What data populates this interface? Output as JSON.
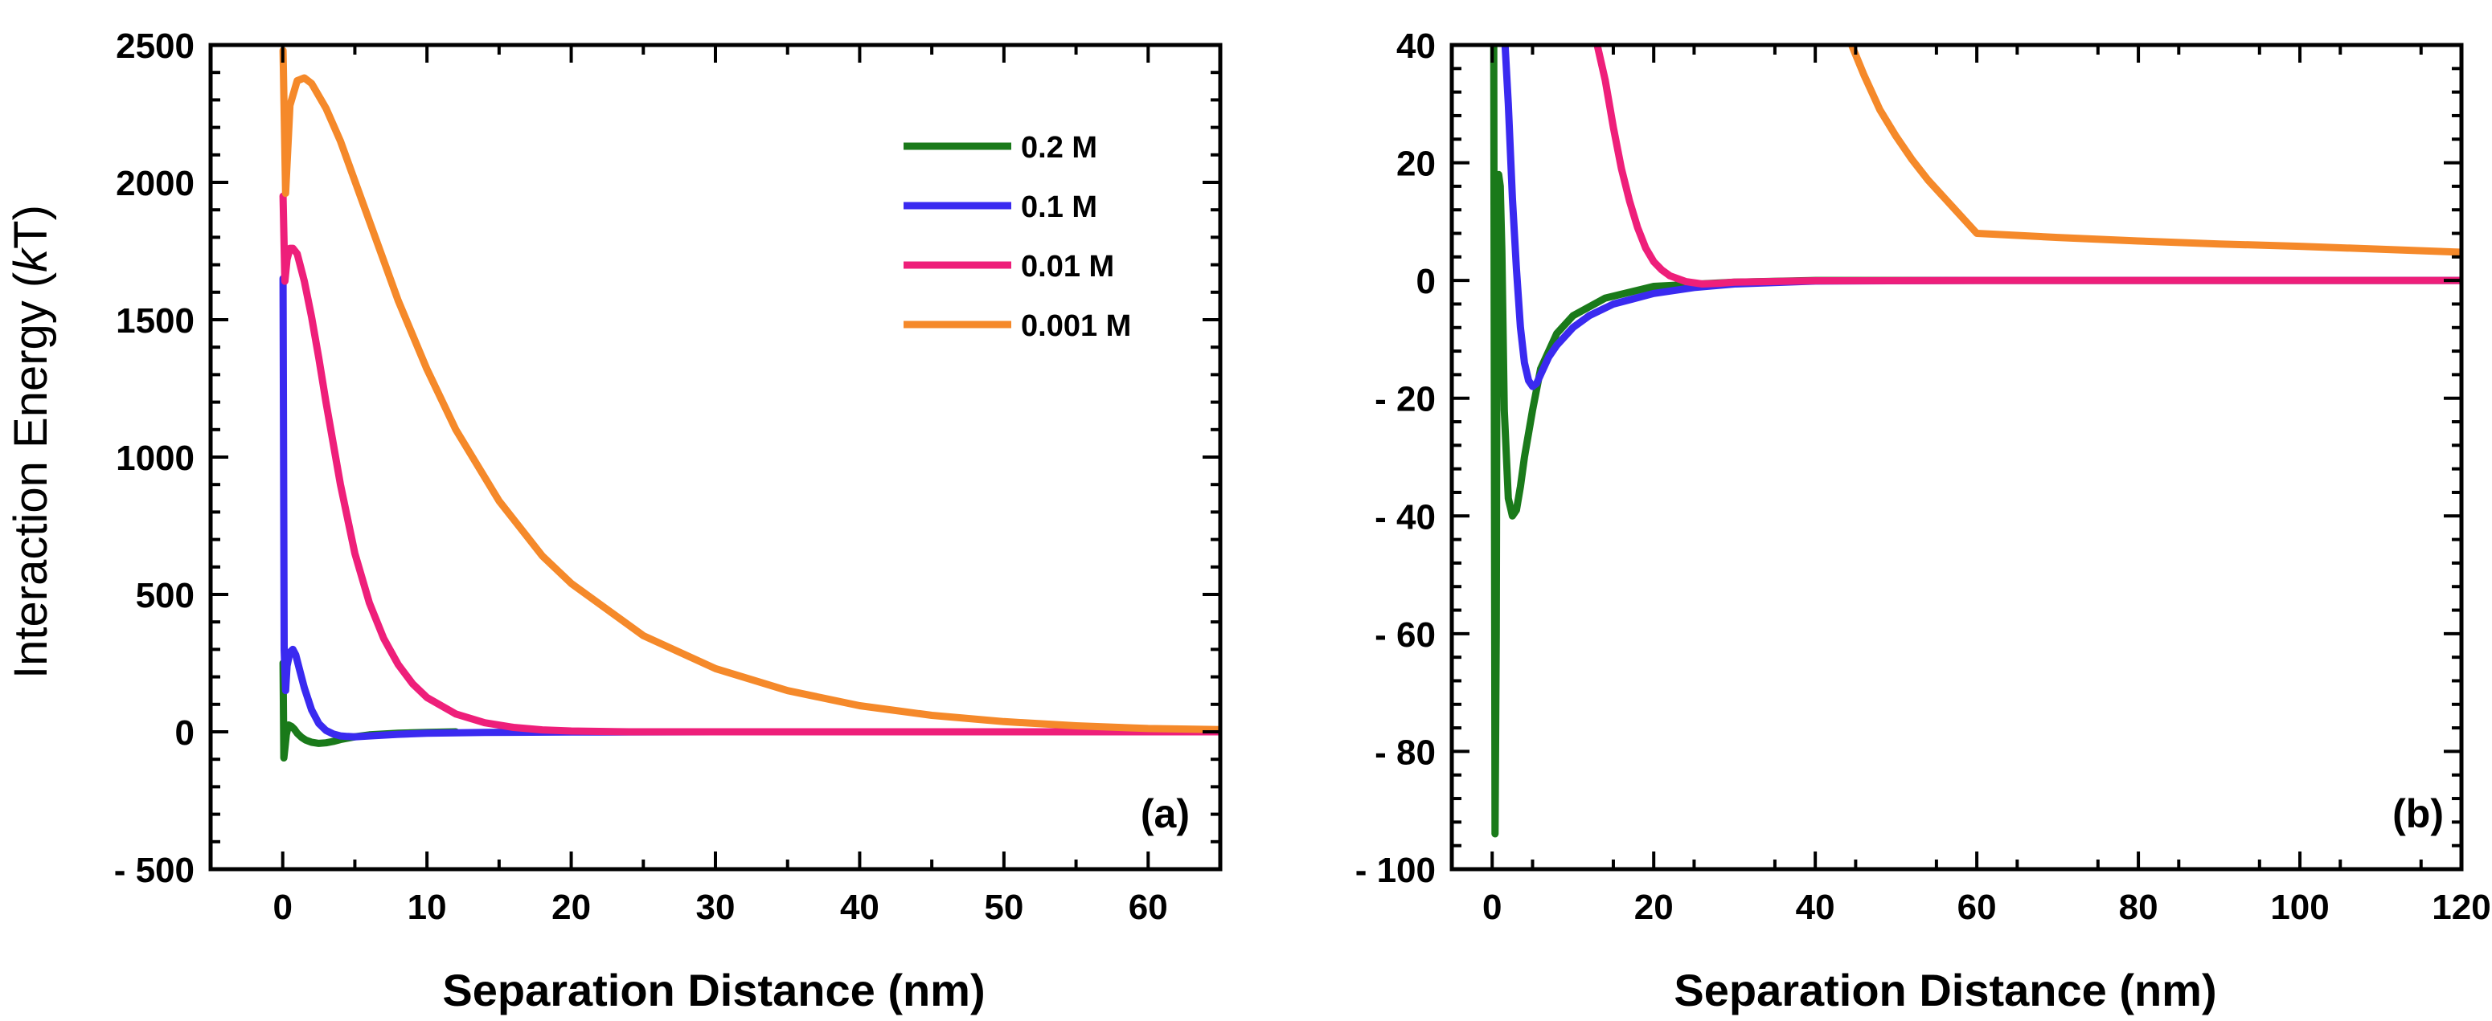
{
  "chart_data": [
    {
      "type": "line",
      "panel_label": "(a)",
      "xlabel": "Separation Distance (nm)",
      "ylabel_prefix": "Interaction Energy (",
      "ylabel_italic": "k",
      "ylabel_suffix": "T)",
      "xlim": [
        -5,
        65
      ],
      "ylim": [
        -500,
        2500
      ],
      "xticks": [
        0,
        10,
        20,
        30,
        40,
        50,
        60
      ],
      "yticks": [
        -500,
        0,
        500,
        1000,
        1500,
        2000,
        2500
      ],
      "ytick_labels": [
        "- 500",
        "0",
        "500",
        "1000",
        "1500",
        "2000",
        "2500"
      ],
      "legend_position": "top-right",
      "series": [
        {
          "name": "0.2 M",
          "color": "#1a7a1a",
          "x": [
            0.02,
            0.08,
            0.15,
            0.25,
            0.4,
            0.6,
            0.8,
            1.0,
            1.3,
            1.6,
            2.0,
            2.5,
            3.0,
            3.5,
            4.0,
            5.0,
            6.0,
            8.0,
            10.0,
            12.0
          ],
          "y": [
            250,
            -95,
            -60,
            -10,
            25,
            20,
            10,
            -5,
            -20,
            -30,
            -38,
            -42,
            -40,
            -35,
            -28,
            -18,
            -11,
            -5,
            -2,
            0
          ]
        },
        {
          "name": "0.1 M",
          "color": "#3a2af0",
          "x": [
            0.02,
            0.1,
            0.2,
            0.3,
            0.5,
            0.7,
            0.9,
            1.2,
            1.5,
            2.0,
            2.5,
            3.0,
            3.5,
            4.0,
            4.5,
            5.0,
            6.0,
            8.0,
            10.0,
            14.0,
            20.0,
            30.0
          ],
          "y": [
            1650,
            300,
            150,
            240,
            290,
            300,
            280,
            220,
            160,
            80,
            30,
            5,
            -8,
            -15,
            -17,
            -18,
            -15,
            -9,
            -5,
            -2,
            -1,
            0
          ]
        },
        {
          "name": "0.01 M",
          "color": "#ee1f7a",
          "x": [
            0.02,
            0.15,
            0.3,
            0.5,
            0.7,
            1.0,
            1.5,
            2.0,
            2.5,
            3.0,
            4.0,
            5.0,
            6.0,
            7.0,
            8.0,
            9.0,
            10.0,
            12.0,
            14.0,
            16.0,
            18.0,
            20.0,
            24.0,
            30.0,
            40.0,
            50.0,
            65.0
          ],
          "y": [
            1950,
            1640,
            1720,
            1760,
            1760,
            1740,
            1640,
            1510,
            1360,
            1200,
            900,
            650,
            470,
            340,
            245,
            175,
            125,
            65,
            33,
            16,
            7,
            3,
            0,
            0,
            0,
            0,
            0
          ]
        },
        {
          "name": "0.001 M",
          "color": "#f5892a",
          "x": [
            0.02,
            0.2,
            0.5,
            1.0,
            1.5,
            2.0,
            3.0,
            4.0,
            6.0,
            8.0,
            10.0,
            12.0,
            15.0,
            18.0,
            20.0,
            25.0,
            30.0,
            35.0,
            40.0,
            45.0,
            50.0,
            55.0,
            60.0,
            65.0
          ],
          "y": [
            2480,
            1960,
            2280,
            2370,
            2380,
            2360,
            2270,
            2150,
            1860,
            1570,
            1320,
            1100,
            840,
            640,
            540,
            350,
            230,
            150,
            95,
            60,
            37,
            22,
            12,
            8
          ]
        }
      ]
    },
    {
      "type": "line",
      "panel_label": "(b)",
      "xlabel": "Separation Distance (nm)",
      "xlim": [
        -5,
        120
      ],
      "ylim": [
        -100,
        40
      ],
      "xticks": [
        0,
        20,
        40,
        60,
        80,
        100,
        120
      ],
      "yticks": [
        -100,
        -80,
        -60,
        -40,
        -20,
        0,
        20,
        40
      ],
      "ytick_labels": [
        "- 100",
        "- 80",
        "- 60",
        "- 40",
        "- 20",
        "0",
        "20",
        "40"
      ],
      "series": [
        {
          "name": "0.2 M",
          "color": "#1a7a1a",
          "x": [
            0.2,
            0.35,
            0.5,
            0.6,
            0.8,
            1.0,
            1.2,
            1.5,
            2.0,
            2.5,
            3.0,
            3.5,
            4.0,
            5.0,
            6.0,
            8.0,
            10.0,
            14.0,
            20.0,
            30.0,
            40.0,
            60.0,
            120.0
          ],
          "y": [
            40,
            -94,
            -60,
            -5,
            18,
            16,
            5,
            -22,
            -37,
            -40,
            -39,
            -35,
            -30,
            -22,
            -15,
            -9,
            -6,
            -3,
            -1,
            -0.3,
            0,
            0,
            0
          ]
        },
        {
          "name": "0.1 M",
          "color": "#3a2af0",
          "x": [
            1.6,
            2.0,
            2.5,
            3.0,
            3.5,
            4.0,
            4.5,
            5.0,
            5.5,
            6.0,
            7.0,
            8.0,
            10.0,
            12.0,
            15.0,
            20.0,
            25.0,
            30.0,
            40.0,
            60.0,
            120.0
          ],
          "y": [
            40,
            30,
            14,
            2,
            -8,
            -14,
            -17,
            -18,
            -17.5,
            -16,
            -13,
            -11,
            -8,
            -6,
            -4,
            -2.2,
            -1.2,
            -0.6,
            -0.1,
            0,
            0
          ]
        },
        {
          "name": "0.01 M",
          "color": "#ee1f7a",
          "x": [
            13.0,
            14.0,
            15.0,
            16.0,
            17.0,
            18.0,
            19.0,
            20.0,
            21.0,
            22.0,
            24.0,
            26.0,
            28.0,
            30.0,
            40.0,
            60.0,
            80.0,
            100.0,
            120.0
          ],
          "y": [
            40,
            34,
            26,
            19,
            13.5,
            9,
            5.5,
            3.2,
            1.8,
            0.8,
            -0.2,
            -0.6,
            -0.5,
            -0.3,
            -0.05,
            0,
            0,
            0,
            0
          ]
        },
        {
          "name": "0.001 M",
          "color": "#f5892a",
          "x": [
            44.5,
            46.0,
            48.0,
            50.0,
            52.0,
            54.0,
            56.0,
            58.0,
            60.0,
            70.0,
            80.0,
            90.0,
            100.0,
            110.0,
            120.0
          ],
          "y": [
            40,
            35,
            29,
            24.5,
            20.5,
            17,
            14,
            11,
            8,
            7.3,
            6.7,
            6.2,
            5.8,
            5.3,
            4.8
          ]
        }
      ]
    }
  ]
}
